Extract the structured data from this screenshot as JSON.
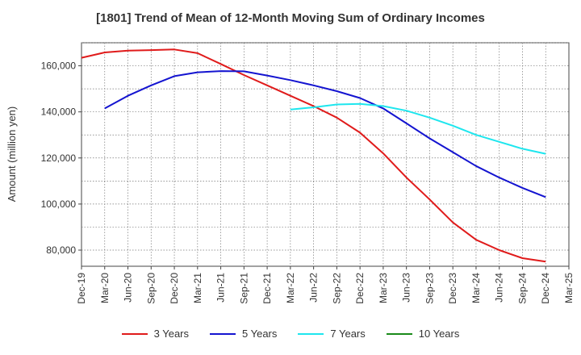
{
  "chart_data": {
    "type": "line",
    "title": "[1801]  Trend of Mean of 12-Month Moving Sum of Ordinary Incomes",
    "xlabel": "",
    "ylabel": "Amount (million yen)",
    "ylim": [
      73000,
      170000
    ],
    "yticks": [
      80000,
      100000,
      120000,
      140000,
      160000
    ],
    "ytick_labels": [
      "80,000",
      "100,000",
      "120,000",
      "140,000",
      "160,000"
    ],
    "x_categories": [
      "Dec-19",
      "Mar-20",
      "Jun-20",
      "Sep-20",
      "Dec-20",
      "Mar-21",
      "Jun-21",
      "Sep-21",
      "Dec-21",
      "Mar-22",
      "Jun-22",
      "Sep-22",
      "Dec-22",
      "Mar-23",
      "Jun-23",
      "Sep-23",
      "Dec-23",
      "Mar-24",
      "Jun-24",
      "Sep-24",
      "Dec-24",
      "Mar-25"
    ],
    "grid": true,
    "legend_position": "bottom",
    "series": [
      {
        "name": "3 Years",
        "color": "#e01b1b",
        "points": [
          [
            0,
            163500
          ],
          [
            1,
            165800
          ],
          [
            2,
            166600
          ],
          [
            3,
            166800
          ],
          [
            4,
            167100
          ],
          [
            5,
            165500
          ],
          [
            6,
            160800
          ],
          [
            7,
            156000
          ],
          [
            8,
            151500
          ],
          [
            9,
            147000
          ],
          [
            10,
            142500
          ],
          [
            11,
            137500
          ],
          [
            12,
            131000
          ],
          [
            13,
            122000
          ],
          [
            14,
            111500
          ],
          [
            15,
            102000
          ],
          [
            16,
            92000
          ],
          [
            17,
            84500
          ],
          [
            18,
            80000
          ],
          [
            19,
            76500
          ],
          [
            20,
            75000
          ]
        ]
      },
      {
        "name": "5 Years",
        "color": "#1414d0",
        "points": [
          [
            1,
            141500
          ],
          [
            2,
            147000
          ],
          [
            3,
            151500
          ],
          [
            4,
            155500
          ],
          [
            5,
            157200
          ],
          [
            6,
            157700
          ],
          [
            7,
            157600
          ],
          [
            8,
            155800
          ],
          [
            9,
            153800
          ],
          [
            10,
            151500
          ],
          [
            11,
            149000
          ],
          [
            12,
            146000
          ],
          [
            13,
            141500
          ],
          [
            14,
            135000
          ],
          [
            15,
            128500
          ],
          [
            16,
            122500
          ],
          [
            17,
            116500
          ],
          [
            18,
            111500
          ],
          [
            19,
            107000
          ],
          [
            20,
            103000
          ]
        ]
      },
      {
        "name": "7 Years",
        "color": "#1ee6ee",
        "points": [
          [
            9,
            141000
          ],
          [
            10,
            142000
          ],
          [
            11,
            143200
          ],
          [
            12,
            143500
          ],
          [
            13,
            142500
          ],
          [
            14,
            140500
          ],
          [
            15,
            137500
          ],
          [
            16,
            134000
          ],
          [
            17,
            130000
          ],
          [
            18,
            127000
          ],
          [
            19,
            124000
          ],
          [
            20,
            121800
          ]
        ]
      },
      {
        "name": "10 Years",
        "color": "#1a8a1a",
        "points": []
      }
    ]
  }
}
